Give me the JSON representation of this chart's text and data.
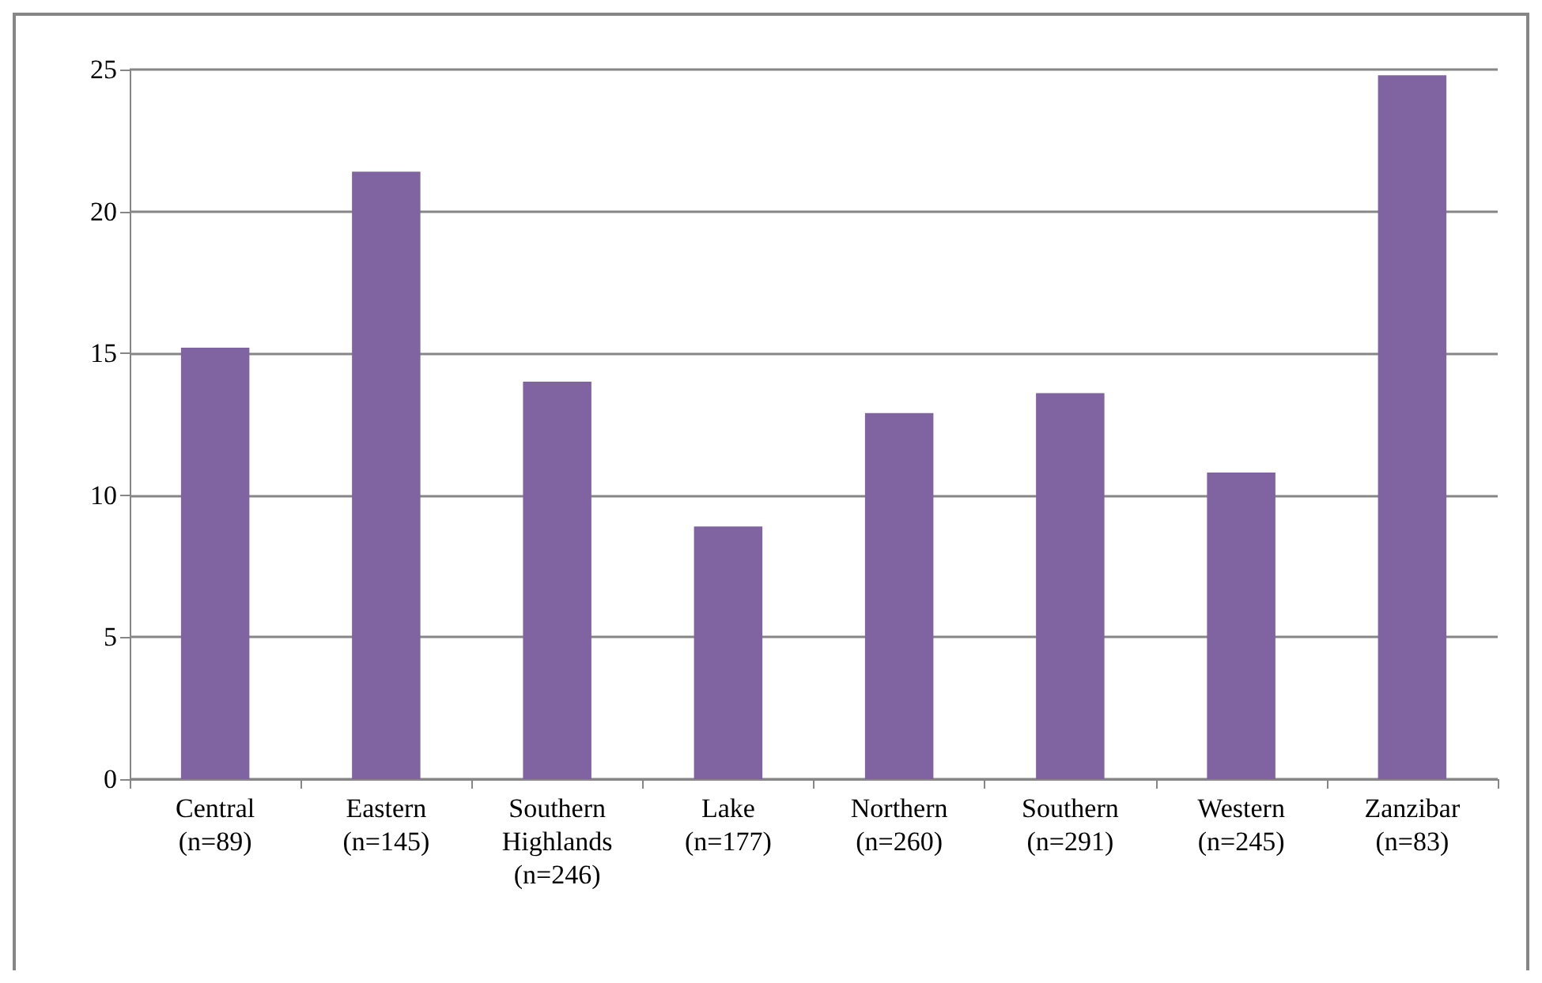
{
  "chart_data": {
    "type": "bar",
    "categories": [
      "Central\n(n=89)",
      "Eastern\n(n=145)",
      "Southern\nHighlands\n(n=246)",
      "Lake\n(n=177)",
      "Northern\n(n=260)",
      "Southern\n(n=291)",
      "Western\n(n=245)",
      "Zanzibar\n(n=83)"
    ],
    "values": [
      15.2,
      21.4,
      14.0,
      8.9,
      12.9,
      13.6,
      10.8,
      24.8
    ],
    "color": "#8064a2",
    "ylim": [
      0,
      25
    ],
    "yticks": [
      0,
      5,
      10,
      15,
      20,
      25
    ],
    "grid": "y"
  }
}
